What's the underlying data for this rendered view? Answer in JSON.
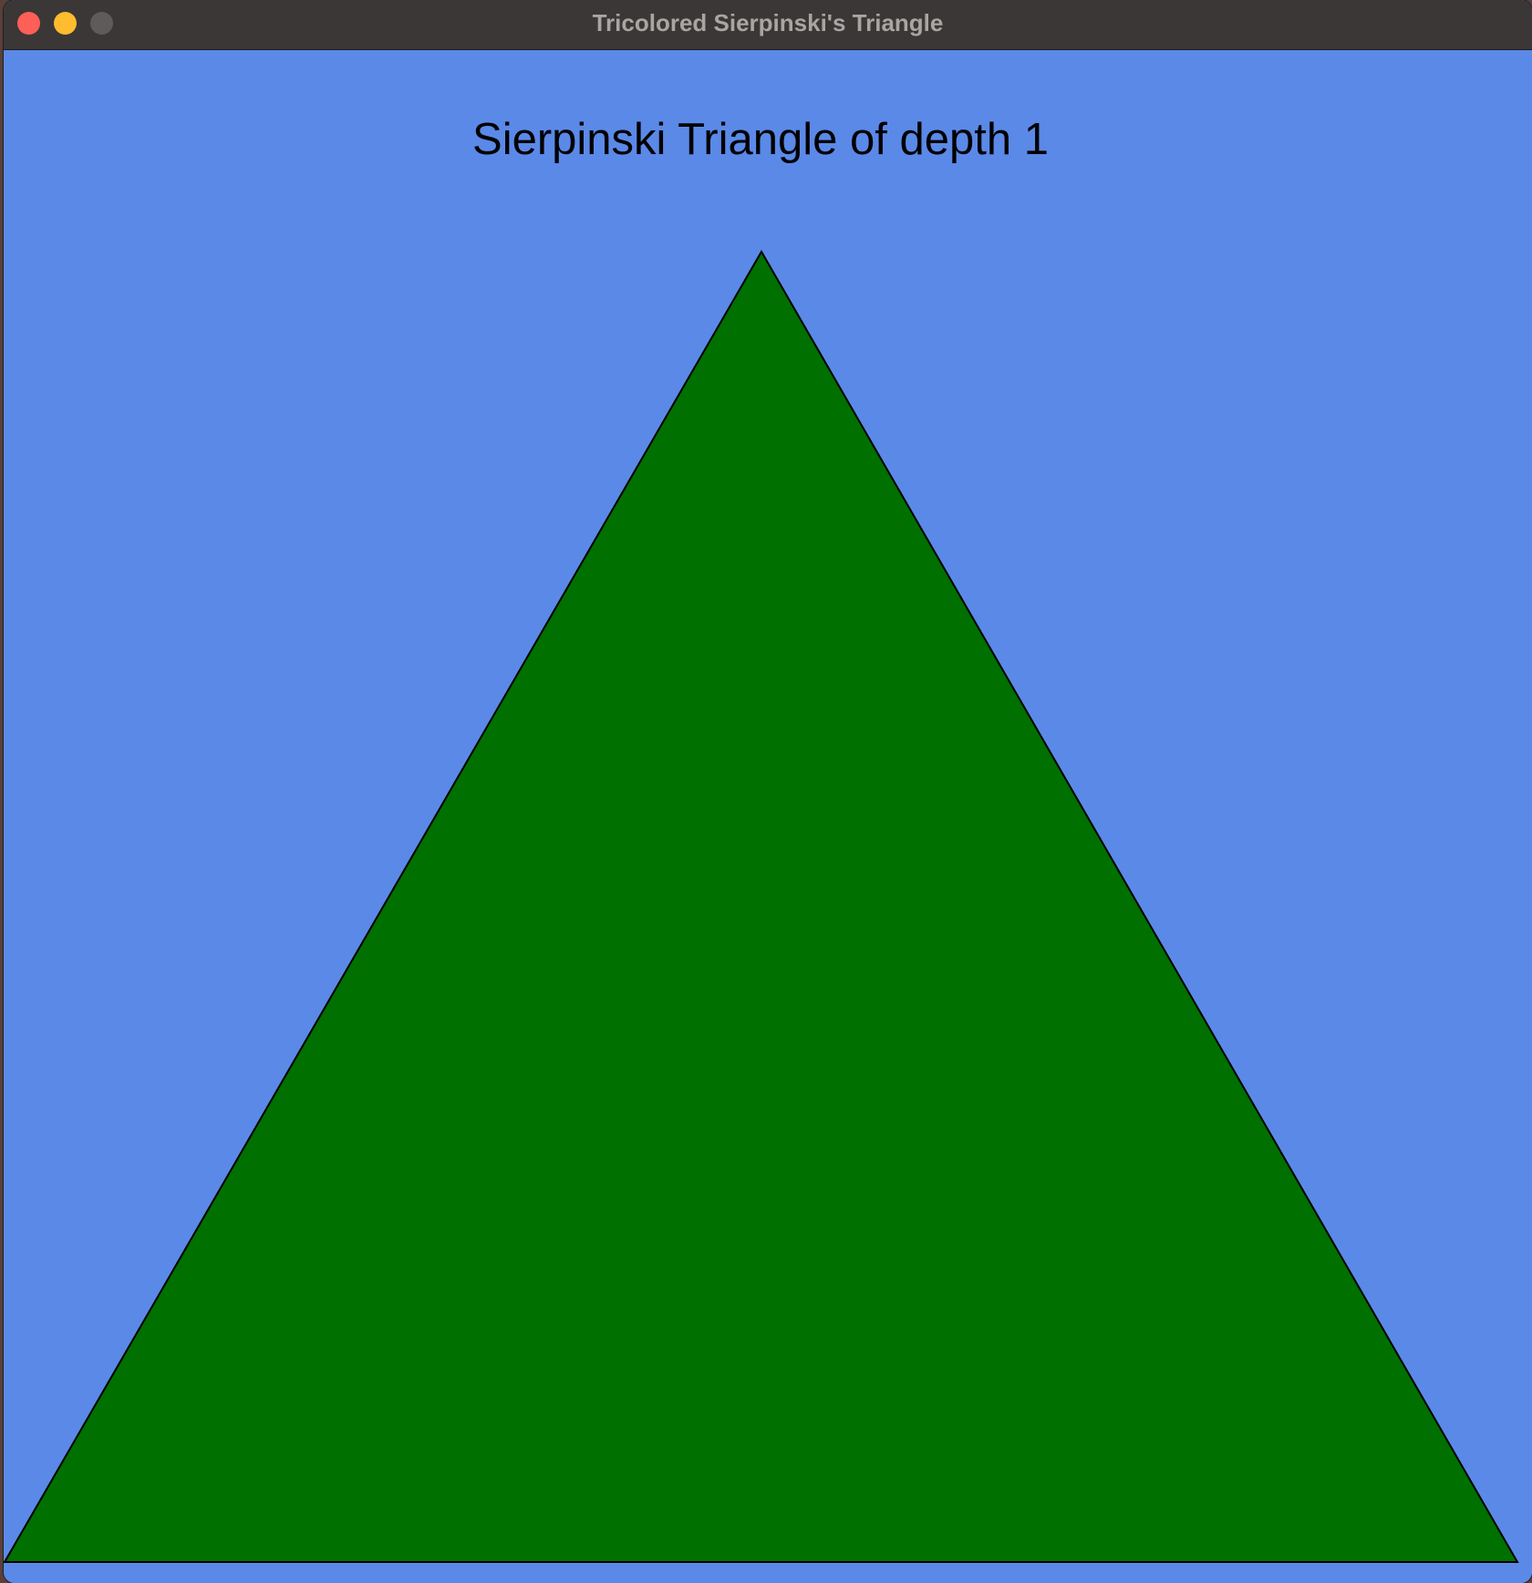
{
  "window": {
    "title": "Tricolored Sierpinski's Triangle",
    "buttons": {
      "close": "close-button",
      "minimize": "minimize-button",
      "zoom": "zoom-button"
    }
  },
  "canvas": {
    "heading": "Sierpinski Triangle of depth 1",
    "depth": 1,
    "background_color": "#5b89e8",
    "triangle_fill": "#007000",
    "triangle_stroke": "#000000"
  }
}
